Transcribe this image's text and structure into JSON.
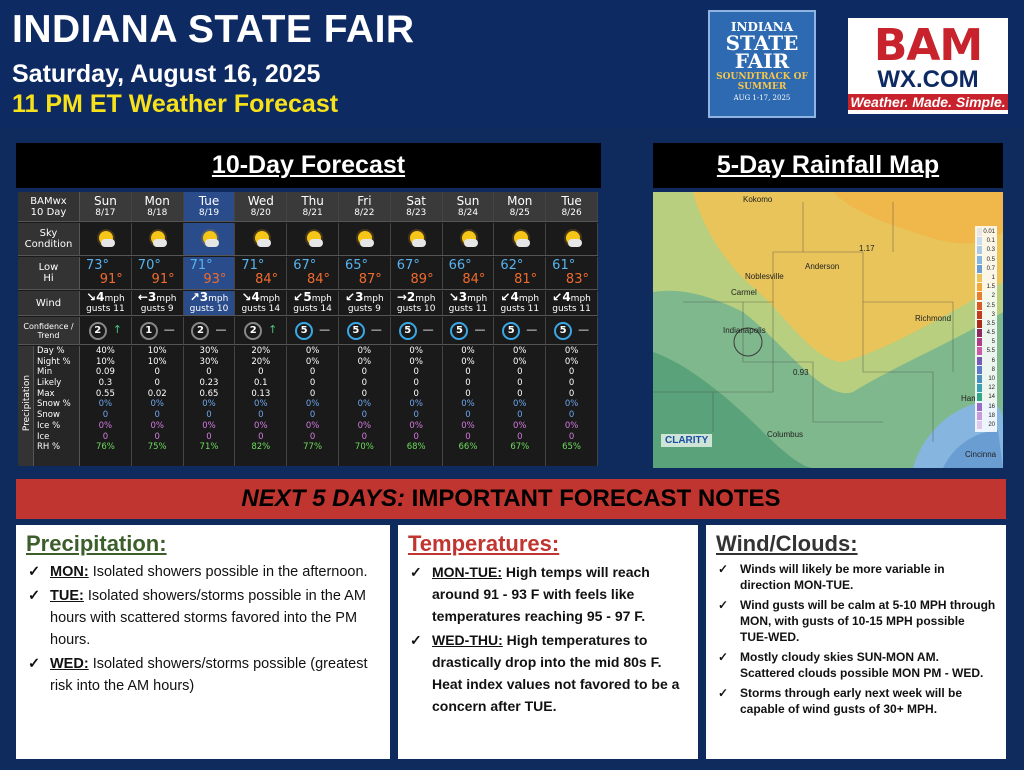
{
  "header": {
    "title": "INDIANA STATE FAIR",
    "date": "Saturday, August 16, 2025",
    "subtitle": "11 PM ET Weather Forecast"
  },
  "fair_logo": {
    "line1": "INDIANA",
    "line2": "STATE FAIR",
    "line3": "SOUNDTRACK OF SUMMER",
    "line4": "AUG 1-17, 2025"
  },
  "bam_logo": {
    "line1": "BAM",
    "line2": "WX.COM",
    "line3": "Weather. Made. Simple."
  },
  "forecast": {
    "heading": "10-Day Forecast",
    "corner": [
      "BAMwx",
      "10 Day"
    ],
    "labels": {
      "sky": [
        "Sky",
        "Condition"
      ],
      "low": "Low",
      "hi": "Hi",
      "wind": "Wind",
      "confidence": [
        "Confidence /",
        "Trend"
      ],
      "precipitation": "Precipitation"
    },
    "precip_labels": [
      "Day %",
      "Night %",
      "Min",
      "Likely",
      "Max",
      "Snow %",
      "Snow",
      "Ice %",
      "Ice",
      "RH %"
    ],
    "days": [
      {
        "day": "Sun",
        "date": "8/17",
        "low": "73°",
        "hi": "91°",
        "wind": "↘4",
        "unit": "mph",
        "gusts": "gusts 11",
        "conf": "2",
        "trend": "↑",
        "precip": [
          "40%",
          "10%",
          "0.09",
          "0.3",
          "0.55",
          "0%",
          "0",
          "0%",
          "0",
          "76%"
        ]
      },
      {
        "day": "Mon",
        "date": "8/18",
        "low": "70°",
        "hi": "91°",
        "wind": "←3",
        "unit": "mph",
        "gusts": "gusts 9",
        "conf": "1",
        "trend": "—",
        "precip": [
          "10%",
          "10%",
          "0",
          "0",
          "0.02",
          "0%",
          "0",
          "0%",
          "0",
          "75%"
        ]
      },
      {
        "day": "Tue",
        "date": "8/19",
        "low": "71°",
        "hi": "93°",
        "wind": "↗3",
        "unit": "mph",
        "gusts": "gusts 10",
        "conf": "2",
        "trend": "—",
        "precip": [
          "30%",
          "30%",
          "0",
          "0.23",
          "0.65",
          "0%",
          "0",
          "0%",
          "0",
          "71%"
        ]
      },
      {
        "day": "Wed",
        "date": "8/20",
        "low": "71°",
        "hi": "84°",
        "wind": "↘4",
        "unit": "mph",
        "gusts": "gusts 14",
        "conf": "2",
        "trend": "↑",
        "precip": [
          "20%",
          "20%",
          "0",
          "0.1",
          "0.13",
          "0%",
          "0",
          "0%",
          "0",
          "82%"
        ]
      },
      {
        "day": "Thu",
        "date": "8/21",
        "low": "67°",
        "hi": "84°",
        "wind": "↙5",
        "unit": "mph",
        "gusts": "gusts 14",
        "conf": "5",
        "trend": "—",
        "precip": [
          "0%",
          "0%",
          "0",
          "0",
          "0",
          "0%",
          "0",
          "0%",
          "0",
          "77%"
        ]
      },
      {
        "day": "Fri",
        "date": "8/22",
        "low": "65°",
        "hi": "87°",
        "wind": "↙3",
        "unit": "mph",
        "gusts": "gusts 9",
        "conf": "5",
        "trend": "—",
        "precip": [
          "0%",
          "0%",
          "0",
          "0",
          "0",
          "0%",
          "0",
          "0%",
          "0",
          "70%"
        ]
      },
      {
        "day": "Sat",
        "date": "8/23",
        "low": "67°",
        "hi": "89°",
        "wind": "→2",
        "unit": "mph",
        "gusts": "gusts 10",
        "conf": "5",
        "trend": "—",
        "precip": [
          "0%",
          "0%",
          "0",
          "0",
          "0",
          "0%",
          "0",
          "0%",
          "0",
          "68%"
        ]
      },
      {
        "day": "Sun",
        "date": "8/24",
        "low": "66°",
        "hi": "84°",
        "wind": "↘3",
        "unit": "mph",
        "gusts": "gusts 11",
        "conf": "5",
        "trend": "—",
        "precip": [
          "0%",
          "0%",
          "0",
          "0",
          "0",
          "0%",
          "0",
          "0%",
          "0",
          "66%"
        ]
      },
      {
        "day": "Mon",
        "date": "8/25",
        "low": "62°",
        "hi": "81°",
        "wind": "↙4",
        "unit": "mph",
        "gusts": "gusts 11",
        "conf": "5",
        "trend": "—",
        "precip": [
          "0%",
          "0%",
          "0",
          "0",
          "0",
          "0%",
          "0",
          "0%",
          "0",
          "67%"
        ]
      },
      {
        "day": "Tue",
        "date": "8/26",
        "low": "61°",
        "hi": "83°",
        "wind": "↙4",
        "unit": "mph",
        "gusts": "gusts 11",
        "conf": "5",
        "trend": "—",
        "precip": [
          "0%",
          "0%",
          "0",
          "0",
          "0",
          "0%",
          "0",
          "0%",
          "0",
          "65%"
        ]
      }
    ]
  },
  "rainfall_map": {
    "heading": "5-Day Rainfall Map",
    "cities": [
      "Kokomo",
      "Anderson",
      "Noblesville",
      "Carmel",
      "Indianapolis",
      "Richmond",
      "Columbus",
      "Cincinna",
      "Ham"
    ],
    "value_labels": [
      "1.17",
      "0.93"
    ],
    "legend": [
      "0.01",
      "0.1",
      "0.3",
      "0.5",
      "0.7",
      "1",
      "1.5",
      "2",
      "2.5",
      "3",
      "3.5",
      "4.5",
      "5",
      "5.5",
      "6",
      "8",
      "10",
      "12",
      "14",
      "16",
      "18",
      "20"
    ],
    "legend_colors": [
      "#e6e6e6",
      "#c9ddf2",
      "#a8c9ea",
      "#86b6e0",
      "#6a9ed3",
      "#e8c45a",
      "#f0a93a",
      "#e57f2d",
      "#d95a25",
      "#c43c1f",
      "#a82b1c",
      "#8c2a60",
      "#b23c8a",
      "#c85aa8",
      "#7a5ab8",
      "#5e7ac8",
      "#4b8fbf",
      "#3ba1b0",
      "#2fa68a",
      "#9a6bc8",
      "#c89ad8",
      "#e0c8ec"
    ],
    "source": "CLARITY"
  },
  "notes": {
    "heading_italic": "NEXT 5 DAYS:",
    "heading_rest": " IMPORTANT FORECAST NOTES",
    "precipitation": {
      "title": "Precipitation:",
      "items": [
        {
          "key": "MON:",
          "text": " Isolated showers  possible in the afternoon."
        },
        {
          "key": "TUE:",
          "text": " Isolated showers/storms possible in the AM hours with scattered storms favored into the PM hours."
        },
        {
          "key": "WED:",
          "text": " Isolated showers/storms possible (greatest risk into the AM hours)"
        }
      ]
    },
    "temperatures": {
      "title": "Temperatures:",
      "items": [
        {
          "key": "MON-TUE:",
          "text": " High temps will reach around 91 - 93 F with feels like temperatures reaching 95 - 97 F."
        },
        {
          "key": "WED-THU:",
          "text": " High temperatures to drastically drop into the mid 80s F. Heat index values not favored to be a concern after TUE."
        }
      ]
    },
    "wind_clouds": {
      "title": "Wind/Clouds:",
      "items": [
        "Winds will likely be more variable in direction MON-TUE.",
        "Wind gusts will be calm at 5-10 MPH through MON, with gusts of 10-15 MPH possible TUE-WED.",
        "Mostly cloudy skies SUN-MON AM. Scattered clouds possible MON PM - WED.",
        "Storms through early next week will be capable of wind gusts of 30+ MPH."
      ]
    },
    "check": "✓"
  }
}
